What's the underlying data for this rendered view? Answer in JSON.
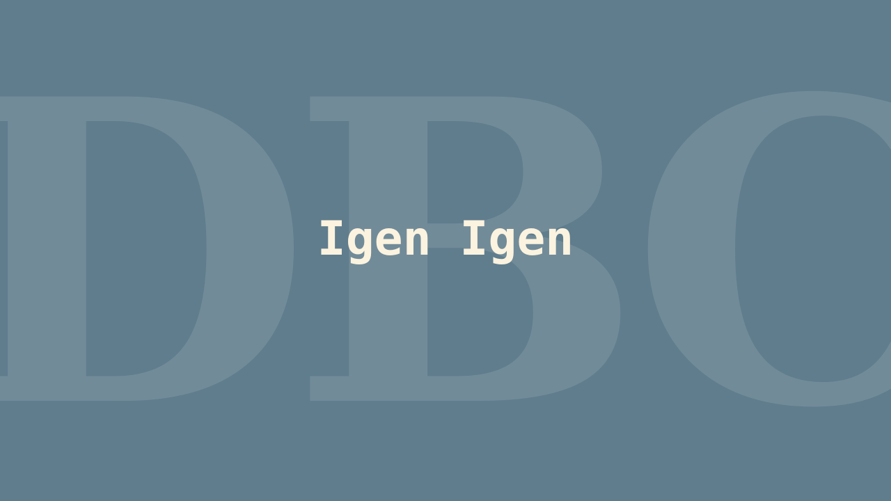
{
  "watermark_text": "DBC",
  "headline_text": "Igen Igen",
  "colors": {
    "background": "#5f7d8d",
    "watermark": "#728b99",
    "headline": "#fbf3df"
  }
}
